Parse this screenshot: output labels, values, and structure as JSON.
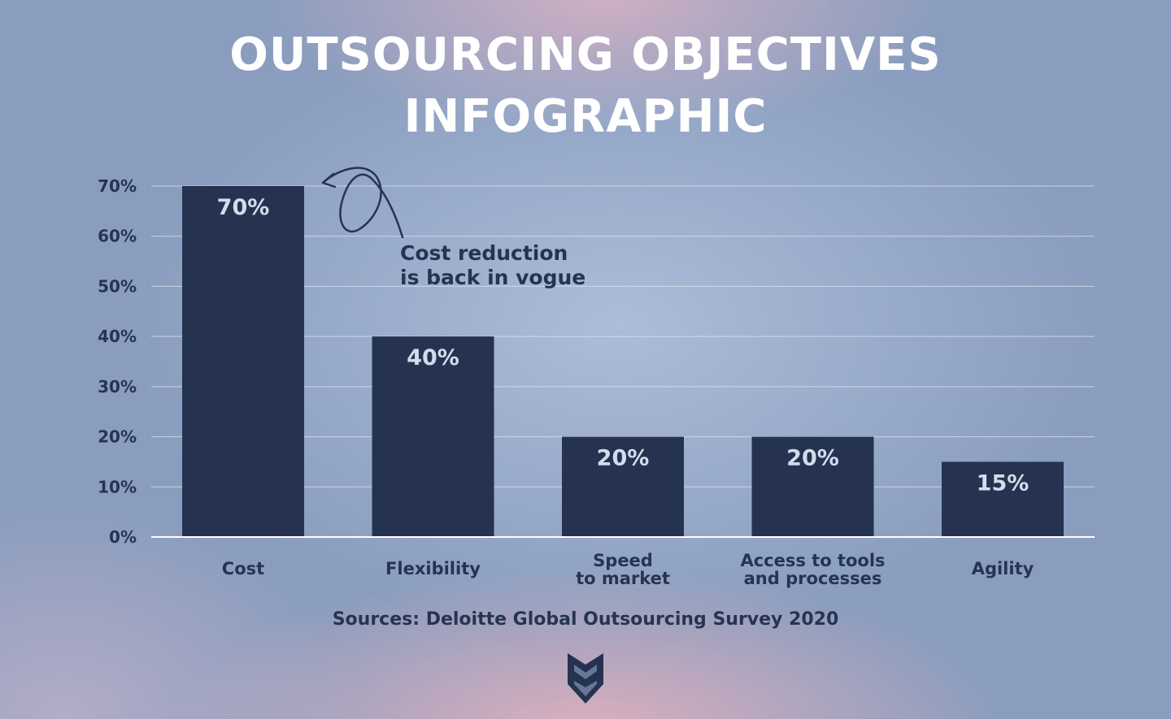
{
  "title_line1": "OUTSOURCING OBJECTIVES",
  "title_line2": "INFOGRAPHIC",
  "annotation_line1": "Cost reduction",
  "annotation_line2": "is back in vogue",
  "source": "Sources: Deloitte Global Outsourcing Survey 2020",
  "logo_icon": "sm-shield-logo-icon",
  "colors": {
    "bar": "#253350",
    "bar_label": "#d3dcec",
    "text_dark": "#263452",
    "title": "#ffffff",
    "gridline": "#dde4f0",
    "axis": "#ffffff"
  },
  "chart_data": {
    "type": "bar",
    "title": "OUTSOURCING OBJECTIVES INFOGRAPHIC",
    "xlabel": "",
    "ylabel": "",
    "categories": [
      [
        "Cost"
      ],
      [
        "Flexibility"
      ],
      [
        "Speed",
        "to market"
      ],
      [
        "Access to tools",
        "and processes"
      ],
      [
        "Agility"
      ]
    ],
    "values": [
      70,
      40,
      20,
      20,
      15
    ],
    "data_labels": [
      "70%",
      "40%",
      "20%",
      "20%",
      "15%"
    ],
    "ylim": [
      0,
      70
    ],
    "yticks": [
      0,
      10,
      20,
      30,
      40,
      50,
      60,
      70
    ],
    "ytick_labels": [
      "0%",
      "10%",
      "20%",
      "30%",
      "40%",
      "50%",
      "60%",
      "70%"
    ],
    "grid": true,
    "legend": "none"
  }
}
